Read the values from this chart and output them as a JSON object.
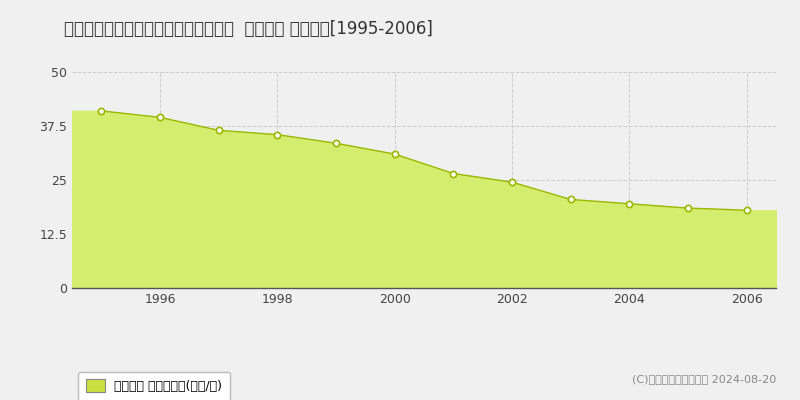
{
  "title": "宮城県仙台市宮城野区大梶１９番６外  地価公示 地価推移[1995-2006]",
  "years": [
    1995,
    1996,
    1997,
    1998,
    1999,
    2000,
    2001,
    2002,
    2003,
    2004,
    2005,
    2006
  ],
  "values": [
    41.0,
    39.5,
    36.5,
    35.5,
    33.5,
    31.0,
    26.5,
    24.5,
    20.5,
    19.5,
    18.5,
    18.0
  ],
  "ylim": [
    0,
    50
  ],
  "yticks": [
    0,
    12.5,
    25,
    37.5,
    50
  ],
  "ytick_labels": [
    "0",
    "12.5",
    "25",
    "37.5",
    "50"
  ],
  "fill_color": "#d4ed6e",
  "line_color": "#9ab800",
  "marker_facecolor": "#ffffff",
  "marker_edgecolor": "#9ab800",
  "grid_color": "#cccccc",
  "bg_color": "#f0f0f0",
  "plot_bg_color": "#f0f0f0",
  "legend_label": "地価公示 平均坪単価(万円/坪)",
  "legend_square_color": "#c8e040",
  "copyright_text": "(C)土地価格ドットコム 2024-08-20",
  "xlabel_tick_years": [
    1996,
    1998,
    2000,
    2002,
    2004,
    2006
  ],
  "title_fontsize": 12,
  "axis_fontsize": 9,
  "legend_fontsize": 9,
  "copyright_fontsize": 8
}
